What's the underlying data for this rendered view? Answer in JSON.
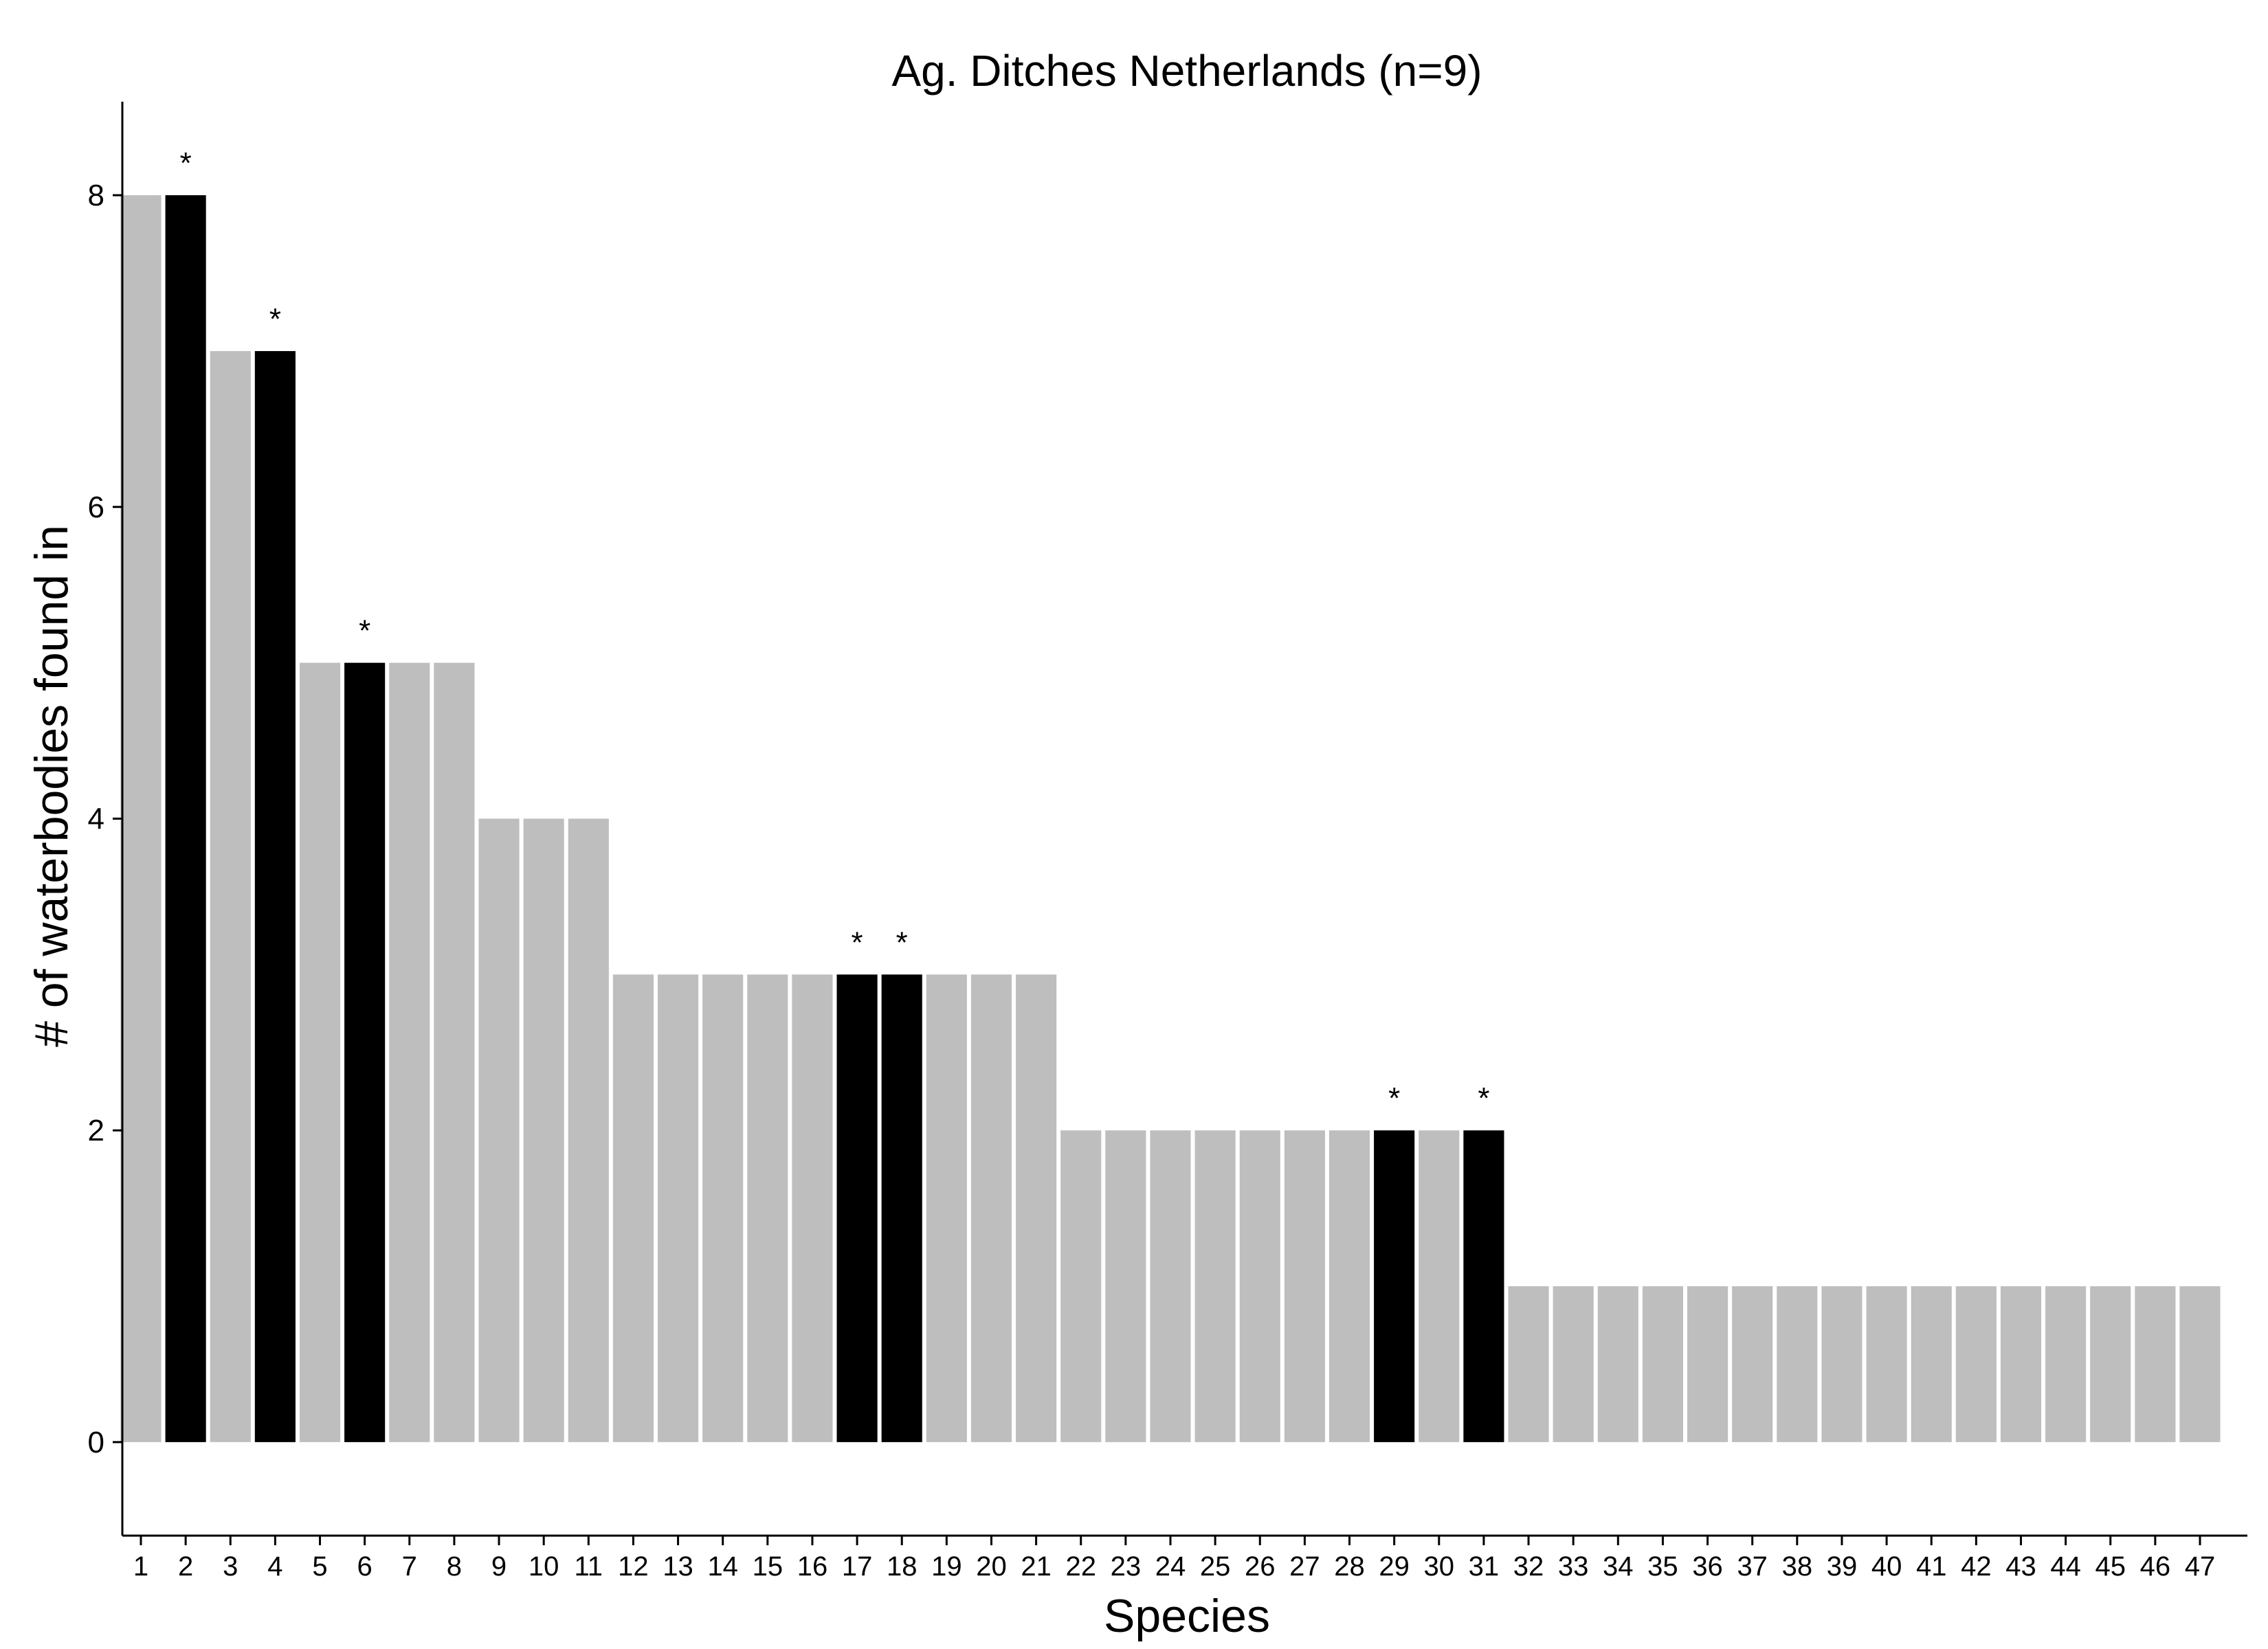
{
  "chart_data": {
    "type": "bar",
    "title": "Ag. Ditches Netherlands (n=9)",
    "xlabel": "Species",
    "ylabel": "# of waterbodies found in",
    "categories": [
      "1",
      "2",
      "3",
      "4",
      "5",
      "6",
      "7",
      "8",
      "9",
      "10",
      "11",
      "12",
      "13",
      "14",
      "15",
      "16",
      "17",
      "18",
      "19",
      "20",
      "21",
      "22",
      "23",
      "24",
      "25",
      "26",
      "27",
      "28",
      "29",
      "30",
      "31",
      "32",
      "33",
      "34",
      "35",
      "36",
      "37",
      "38",
      "39",
      "40",
      "41",
      "42",
      "43",
      "44",
      "45",
      "46",
      "47"
    ],
    "values": [
      8,
      8,
      7,
      7,
      5,
      5,
      5,
      5,
      4,
      4,
      4,
      3,
      3,
      3,
      3,
      3,
      3,
      3,
      3,
      3,
      3,
      2,
      2,
      2,
      2,
      2,
      2,
      2,
      2,
      2,
      2,
      1,
      1,
      1,
      1,
      1,
      1,
      1,
      1,
      1,
      1,
      1,
      1,
      1,
      1,
      1,
      1
    ],
    "highlighted": [
      false,
      true,
      false,
      true,
      false,
      true,
      false,
      false,
      false,
      false,
      false,
      false,
      false,
      false,
      false,
      false,
      true,
      true,
      false,
      false,
      false,
      false,
      false,
      false,
      false,
      false,
      false,
      false,
      true,
      false,
      true,
      false,
      false,
      false,
      false,
      false,
      false,
      false,
      false,
      false,
      false,
      false,
      false,
      false,
      false,
      false,
      false
    ],
    "annotation_marker": "*",
    "yticks": [
      "0",
      "2",
      "4",
      "6",
      "8"
    ],
    "ylim": [
      -0.6,
      8.6
    ],
    "grid": false,
    "legend": "none",
    "colors": {
      "default_bar": "#bebebe",
      "highlight_bar": "#000000",
      "axis": "#000000"
    }
  }
}
